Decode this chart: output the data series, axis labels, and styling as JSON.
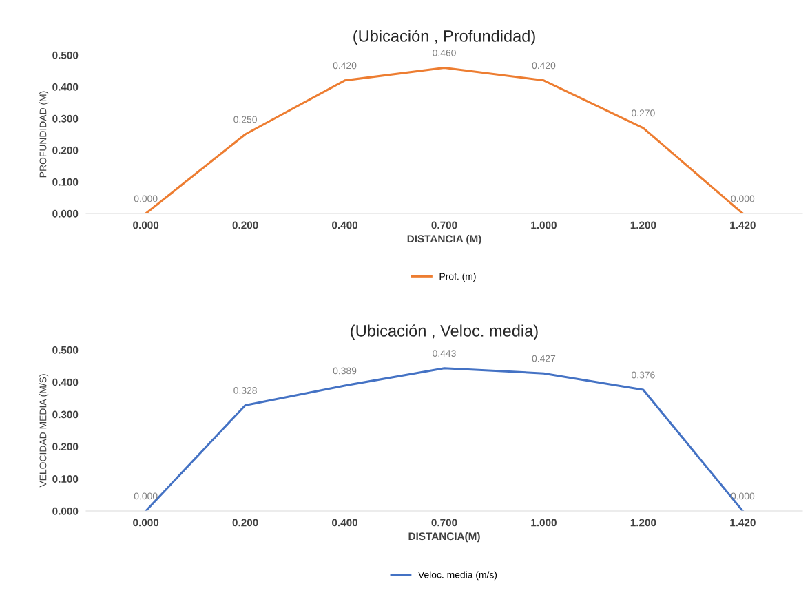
{
  "chart_data": [
    {
      "type": "line",
      "title": "(Ubicación , Profundidad)",
      "xlabel": "DISTANCIA (M)",
      "ylabel": "PROFUNDIDAD (M)",
      "categories": [
        "0.000",
        "0.200",
        "0.400",
        "0.700",
        "1.000",
        "1.200",
        "1.420"
      ],
      "series": [
        {
          "name": "Prof. (m)",
          "color": "#ed7d31",
          "values": [
            0.0,
            0.25,
            0.42,
            0.46,
            0.42,
            0.27,
            0.0
          ],
          "value_labels": [
            "0.000",
            "0.250",
            "0.420",
            "0.460",
            "0.420",
            "0.270",
            "0.000"
          ]
        }
      ],
      "ylim": [
        0,
        0.5
      ],
      "yticks": [
        {
          "value": 0,
          "label": "0.000"
        },
        {
          "value": 0.1,
          "label": "0.100"
        },
        {
          "value": 0.2,
          "label": "0.200"
        },
        {
          "value": 0.3,
          "label": "0.300"
        },
        {
          "value": 0.4,
          "label": "0.400"
        },
        {
          "value": 0.5,
          "label": "0.500"
        }
      ],
      "grid": false,
      "legend": "bottom",
      "marker": "none",
      "line_style": "solid"
    },
    {
      "type": "line",
      "title": "(Ubicación , Veloc. media)",
      "xlabel": "DISTANCIA(M)",
      "ylabel": "VELOCIDAD MEDIA (M/S)",
      "categories": [
        "0.000",
        "0.200",
        "0.400",
        "0.700",
        "1.000",
        "1.200",
        "1.420"
      ],
      "series": [
        {
          "name": "Veloc. media (m/s)",
          "color": "#4472c4",
          "values": [
            0.0,
            0.328,
            0.389,
            0.443,
            0.427,
            0.376,
            0.0
          ],
          "value_labels": [
            "0.000",
            "0.328",
            "0.389",
            "0.443",
            "0.427",
            "0.376",
            "0.000"
          ]
        }
      ],
      "ylim": [
        0,
        0.5
      ],
      "yticks": [
        {
          "value": 0,
          "label": "0.000"
        },
        {
          "value": 0.1,
          "label": "0.100"
        },
        {
          "value": 0.2,
          "label": "0.200"
        },
        {
          "value": 0.3,
          "label": "0.300"
        },
        {
          "value": 0.4,
          "label": "0.400"
        },
        {
          "value": 0.5,
          "label": "0.500"
        }
      ],
      "grid": false,
      "legend": "bottom",
      "marker": "none",
      "line_style": "solid"
    }
  ]
}
